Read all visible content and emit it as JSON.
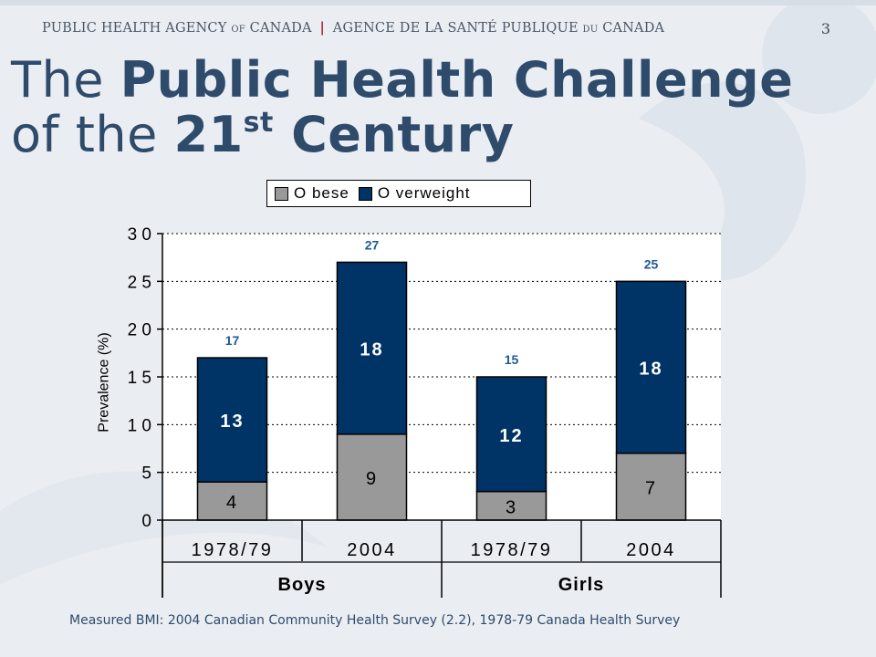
{
  "slide": {
    "agency_en": "PUBLIC HEALTH AGENCY of CANADA",
    "agency_sep": "|",
    "agency_fr": "AGENCE DE LA SANTÉ PUBLIQUE du CANADA",
    "page_number": "3",
    "title_part1": "The ",
    "title_bold1": "Public Health Challenge",
    "title_part2": "of the ",
    "title_bold2": "21",
    "title_sup": "st",
    "title_bold3": " Century",
    "source": "Measured BMI: 2004 Canadian Community Health Survey (2.2), 1978-79 Canada Health Survey"
  },
  "chart_data": {
    "type": "bar",
    "stacked": true,
    "categories": [
      "1978/79",
      "2004",
      "1978/79",
      "2004"
    ],
    "groups": [
      {
        "label": "Boys",
        "categories": [
          "1978/79",
          "2004"
        ]
      },
      {
        "label": "Girls",
        "categories": [
          "1978/79",
          "2004"
        ]
      }
    ],
    "series": [
      {
        "name": "O bese",
        "values": [
          4,
          9,
          3,
          7
        ],
        "color": "#999999"
      },
      {
        "name": "O verweight",
        "values": [
          13,
          18,
          12,
          18
        ],
        "color": "#003366"
      }
    ],
    "totals": [
      17,
      27,
      15,
      25
    ],
    "ylabel": "Prevalence (%)",
    "yticks": [
      "0",
      "5",
      "1 0",
      "1 5",
      "2 0",
      "2 5",
      "3 0"
    ],
    "ylim": [
      0,
      30
    ],
    "grid": true,
    "legend": "top"
  }
}
